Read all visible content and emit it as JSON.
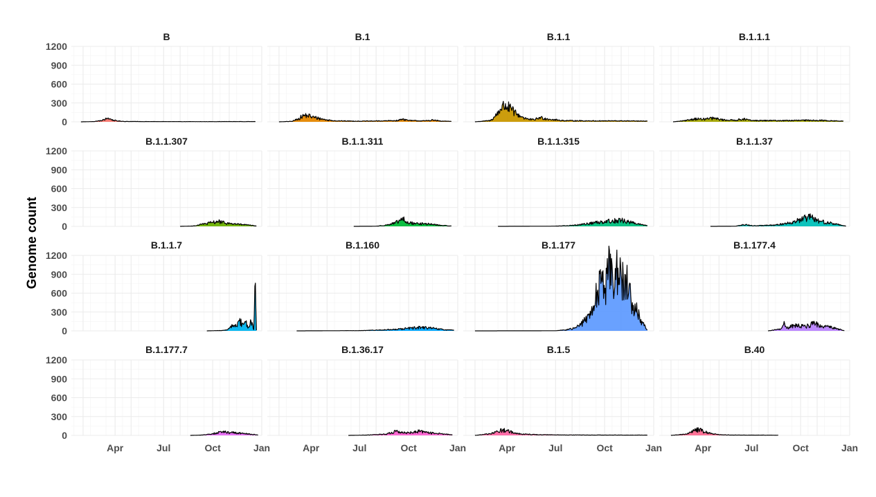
{
  "chart_data": {
    "type": "area",
    "facet": "small-multiples",
    "grid": true,
    "legend": "none",
    "xlabel": "",
    "ylabel": "Genome count",
    "ylim": [
      0,
      1200
    ],
    "y_ticks": [
      0,
      300,
      600,
      900,
      1200
    ],
    "x_ticks": [
      "Apr",
      "Jul",
      "Oct",
      "Jan"
    ],
    "xlim": [
      "2020-01-10",
      "2021-01-01"
    ],
    "panels": [
      {
        "title": "B",
        "color": "#F8766D",
        "points": [
          [
            "2020-01-28",
            0
          ],
          [
            "2020-02-20",
            4
          ],
          [
            "2020-03-05",
            18
          ],
          [
            "2020-03-12",
            34
          ],
          [
            "2020-03-18",
            55
          ],
          [
            "2020-03-22",
            50
          ],
          [
            "2020-03-26",
            30
          ],
          [
            "2020-04-05",
            14
          ],
          [
            "2020-04-20",
            6
          ],
          [
            "2020-06-01",
            4
          ],
          [
            "2020-09-01",
            3
          ],
          [
            "2020-11-01",
            4
          ],
          [
            "2020-12-20",
            4
          ]
        ]
      },
      {
        "title": "B.1",
        "color": "#E58700",
        "points": [
          [
            "2020-02-01",
            0
          ],
          [
            "2020-02-25",
            8
          ],
          [
            "2020-03-08",
            45
          ],
          [
            "2020-03-16",
            90
          ],
          [
            "2020-03-24",
            110
          ],
          [
            "2020-04-01",
            80
          ],
          [
            "2020-04-15",
            55
          ],
          [
            "2020-05-01",
            30
          ],
          [
            "2020-05-20",
            15
          ],
          [
            "2020-07-01",
            10
          ],
          [
            "2020-08-15",
            15
          ],
          [
            "2020-09-10",
            20
          ],
          [
            "2020-09-20",
            45
          ],
          [
            "2020-10-01",
            20
          ],
          [
            "2020-11-01",
            15
          ],
          [
            "2020-11-15",
            30
          ],
          [
            "2020-12-01",
            10
          ],
          [
            "2020-12-20",
            8
          ]
        ]
      },
      {
        "title": "B.1.1",
        "color": "#C99800",
        "points": [
          [
            "2020-02-01",
            0
          ],
          [
            "2020-03-01",
            20
          ],
          [
            "2020-03-10",
            90
          ],
          [
            "2020-03-20",
            200
          ],
          [
            "2020-03-26",
            250
          ],
          [
            "2020-04-01",
            240
          ],
          [
            "2020-04-10",
            180
          ],
          [
            "2020-04-20",
            120
          ],
          [
            "2020-05-01",
            70
          ],
          [
            "2020-05-12",
            40
          ],
          [
            "2020-05-22",
            30
          ],
          [
            "2020-06-01",
            70
          ],
          [
            "2020-06-10",
            55
          ],
          [
            "2020-06-20",
            40
          ],
          [
            "2020-07-15",
            20
          ],
          [
            "2020-09-01",
            15
          ],
          [
            "2020-11-01",
            15
          ],
          [
            "2020-12-20",
            10
          ]
        ]
      },
      {
        "title": "B.1.1.1",
        "color": "#A3A500",
        "points": [
          [
            "2020-02-05",
            0
          ],
          [
            "2020-03-01",
            20
          ],
          [
            "2020-03-15",
            50
          ],
          [
            "2020-04-01",
            40
          ],
          [
            "2020-04-20",
            55
          ],
          [
            "2020-05-10",
            30
          ],
          [
            "2020-06-01",
            25
          ],
          [
            "2020-06-15",
            45
          ],
          [
            "2020-07-01",
            20
          ],
          [
            "2020-09-01",
            20
          ],
          [
            "2020-11-01",
            25
          ],
          [
            "2020-12-20",
            10
          ]
        ]
      },
      {
        "title": "B.1.1.307",
        "color": "#6BB100",
        "points": [
          [
            "2020-08-01",
            0
          ],
          [
            "2020-08-25",
            5
          ],
          [
            "2020-09-10",
            30
          ],
          [
            "2020-10-01",
            60
          ],
          [
            "2020-10-10",
            80
          ],
          [
            "2020-10-25",
            50
          ],
          [
            "2020-11-15",
            35
          ],
          [
            "2020-12-01",
            25
          ],
          [
            "2020-12-22",
            5
          ]
        ]
      },
      {
        "title": "B.1.1.311",
        "color": "#00BA38",
        "points": [
          [
            "2020-06-20",
            0
          ],
          [
            "2020-08-01",
            2
          ],
          [
            "2020-08-20",
            20
          ],
          [
            "2020-09-05",
            50
          ],
          [
            "2020-09-15",
            90
          ],
          [
            "2020-09-20",
            140
          ],
          [
            "2020-09-25",
            60
          ],
          [
            "2020-10-15",
            45
          ],
          [
            "2020-11-10",
            35
          ],
          [
            "2020-12-01",
            15
          ],
          [
            "2020-12-20",
            5
          ]
        ]
      },
      {
        "title": "B.1.1.315",
        "color": "#00BF7D",
        "points": [
          [
            "2020-03-15",
            0
          ],
          [
            "2020-07-01",
            3
          ],
          [
            "2020-08-01",
            15
          ],
          [
            "2020-08-20",
            30
          ],
          [
            "2020-09-10",
            55
          ],
          [
            "2020-10-01",
            80
          ],
          [
            "2020-10-15",
            90
          ],
          [
            "2020-11-01",
            95
          ],
          [
            "2020-11-15",
            70
          ],
          [
            "2020-12-01",
            40
          ],
          [
            "2020-12-20",
            10
          ]
        ]
      },
      {
        "title": "B.1.1.37",
        "color": "#00C0B8",
        "points": [
          [
            "2020-04-15",
            0
          ],
          [
            "2020-06-01",
            2
          ],
          [
            "2020-06-20",
            30
          ],
          [
            "2020-07-05",
            8
          ],
          [
            "2020-08-15",
            20
          ],
          [
            "2020-09-05",
            50
          ],
          [
            "2020-10-01",
            100
          ],
          [
            "2020-10-10",
            130
          ],
          [
            "2020-10-20",
            140
          ],
          [
            "2020-11-01",
            90
          ],
          [
            "2020-11-20",
            60
          ],
          [
            "2020-12-10",
            30
          ],
          [
            "2020-12-25",
            5
          ]
        ]
      },
      {
        "title": "B.1.1.7",
        "color": "#00B4EF",
        "points": [
          [
            "2020-09-20",
            0
          ],
          [
            "2020-10-15",
            5
          ],
          [
            "2020-10-25",
            10
          ],
          [
            "2020-11-01",
            40
          ],
          [
            "2020-11-08",
            90
          ],
          [
            "2020-11-15",
            70
          ],
          [
            "2020-11-20",
            160
          ],
          [
            "2020-11-25",
            110
          ],
          [
            "2020-12-01",
            150
          ],
          [
            "2020-12-07",
            60
          ],
          [
            "2020-12-12",
            150
          ],
          [
            "2020-12-17",
            20
          ],
          [
            "2020-12-20",
            760
          ],
          [
            "2020-12-22",
            10
          ]
        ]
      },
      {
        "title": "B.1.160",
        "color": "#00A5FF",
        "points": [
          [
            "2020-03-05",
            0
          ],
          [
            "2020-07-01",
            4
          ],
          [
            "2020-08-15",
            15
          ],
          [
            "2020-09-15",
            30
          ],
          [
            "2020-10-10",
            45
          ],
          [
            "2020-10-25",
            55
          ],
          [
            "2020-11-15",
            40
          ],
          [
            "2020-12-05",
            20
          ],
          [
            "2020-12-25",
            10
          ]
        ]
      },
      {
        "title": "B.1.177",
        "color": "#619CFF",
        "points": [
          [
            "2020-02-01",
            0
          ],
          [
            "2020-07-01",
            2
          ],
          [
            "2020-07-20",
            15
          ],
          [
            "2020-08-05",
            40
          ],
          [
            "2020-08-15",
            90
          ],
          [
            "2020-08-25",
            160
          ],
          [
            "2020-09-05",
            250
          ],
          [
            "2020-09-12",
            400
          ],
          [
            "2020-09-18",
            650
          ],
          [
            "2020-09-25",
            800
          ],
          [
            "2020-10-01",
            600
          ],
          [
            "2020-10-08",
            950
          ],
          [
            "2020-10-14",
            1150
          ],
          [
            "2020-10-20",
            700
          ],
          [
            "2020-10-26",
            1000
          ],
          [
            "2020-11-02",
            800
          ],
          [
            "2020-11-08",
            900
          ],
          [
            "2020-11-15",
            600
          ],
          [
            "2020-11-22",
            450
          ],
          [
            "2020-12-01",
            300
          ],
          [
            "2020-12-08",
            180
          ],
          [
            "2020-12-14",
            80
          ],
          [
            "2020-12-20",
            15
          ]
        ]
      },
      {
        "title": "B.1.177.4",
        "color": "#B983FF",
        "points": [
          [
            "2020-08-01",
            0
          ],
          [
            "2020-08-25",
            30
          ],
          [
            "2020-09-01",
            120
          ],
          [
            "2020-09-05",
            40
          ],
          [
            "2020-09-20",
            90
          ],
          [
            "2020-10-10",
            70
          ],
          [
            "2020-10-25",
            110
          ],
          [
            "2020-11-15",
            80
          ],
          [
            "2020-12-05",
            40
          ],
          [
            "2020-12-22",
            5
          ]
        ]
      },
      {
        "title": "B.1.177.7",
        "color": "#E76BF3",
        "points": [
          [
            "2020-08-20",
            0
          ],
          [
            "2020-09-10",
            5
          ],
          [
            "2020-09-25",
            20
          ],
          [
            "2020-10-10",
            40
          ],
          [
            "2020-10-20",
            55
          ],
          [
            "2020-11-05",
            45
          ],
          [
            "2020-11-20",
            35
          ],
          [
            "2020-12-10",
            20
          ],
          [
            "2020-12-25",
            5
          ]
        ]
      },
      {
        "title": "B.1.36.17",
        "color": "#FD61D1",
        "points": [
          [
            "2020-06-10",
            0
          ],
          [
            "2020-07-15",
            5
          ],
          [
            "2020-08-20",
            20
          ],
          [
            "2020-09-10",
            70
          ],
          [
            "2020-09-20",
            40
          ],
          [
            "2020-10-10",
            45
          ],
          [
            "2020-10-20",
            65
          ],
          [
            "2020-11-10",
            40
          ],
          [
            "2020-12-01",
            25
          ],
          [
            "2020-12-22",
            8
          ]
        ]
      },
      {
        "title": "B.1.5",
        "color": "#FF67A4",
        "points": [
          [
            "2020-02-01",
            0
          ],
          [
            "2020-03-01",
            25
          ],
          [
            "2020-03-15",
            60
          ],
          [
            "2020-03-24",
            90
          ],
          [
            "2020-04-01",
            70
          ],
          [
            "2020-04-15",
            40
          ],
          [
            "2020-05-01",
            20
          ],
          [
            "2020-06-01",
            10
          ],
          [
            "2020-08-01",
            6
          ],
          [
            "2020-10-01",
            5
          ],
          [
            "2020-12-20",
            4
          ]
        ]
      },
      {
        "title": "B.40",
        "color": "#FF6C91",
        "points": [
          [
            "2020-02-01",
            0
          ],
          [
            "2020-03-01",
            20
          ],
          [
            "2020-03-15",
            70
          ],
          [
            "2020-03-24",
            95
          ],
          [
            "2020-04-01",
            65
          ],
          [
            "2020-04-15",
            30
          ],
          [
            "2020-05-01",
            10
          ],
          [
            "2020-06-01",
            5
          ],
          [
            "2020-08-20",
            3
          ]
        ]
      }
    ]
  }
}
